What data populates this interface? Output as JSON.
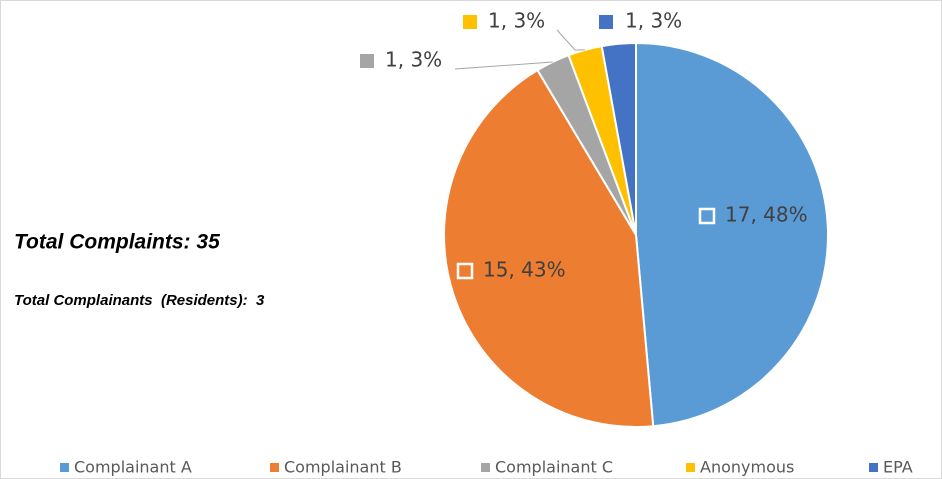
{
  "chart_data": {
    "type": "pie",
    "categories": [
      "Complainant A",
      "Complainant B",
      "Complainant C",
      "Anonymous",
      "EPA"
    ],
    "values": [
      17,
      15,
      1,
      1,
      1
    ],
    "value_labels": [
      "17, 48%",
      "15, 43%",
      "1, 3%",
      "1, 3%",
      "1, 3%"
    ],
    "colors": [
      "#5b9bd5",
      "#ed7d31",
      "#a5a5a5",
      "#ffc000",
      "#4472c4"
    ],
    "annotations": [
      "Total Complaints: 35",
      "Total Complainants  (Residents):  3"
    ],
    "legend": "bottom"
  }
}
